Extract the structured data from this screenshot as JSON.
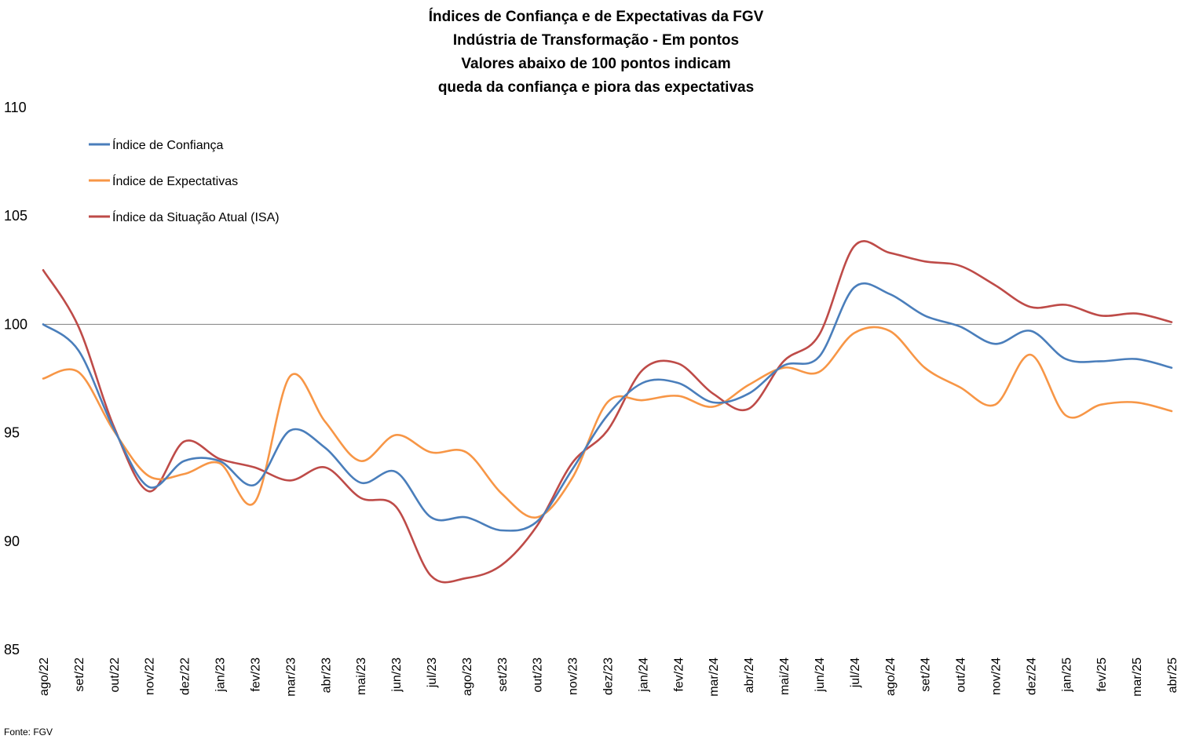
{
  "chart_data": {
    "type": "line",
    "title": [
      "Índices de Confiança e de Expectativas da FGV",
      "Indústria de Transformação - Em pontos",
      "Valores abaixo de 100 pontos indicam",
      "queda da confiança e piora das expectativas"
    ],
    "categories": [
      "ago/22",
      "set/22",
      "out/22",
      "nov/22",
      "dez/22",
      "jan/23",
      "fev/23",
      "mar/23",
      "abr/23",
      "mai/23",
      "jun/23",
      "jul/23",
      "ago/23",
      "set/23",
      "out/23",
      "nov/23",
      "dez/23",
      "jan/24",
      "fev/24",
      "mar/24",
      "abr/24",
      "mai/24",
      "jun/24",
      "jul/24",
      "ago/24",
      "set/24",
      "out/24",
      "nov/24",
      "dez/24",
      "jan/25",
      "fev/25",
      "mar/25",
      "abr/25"
    ],
    "series": [
      {
        "name": "Índice de Confiança",
        "color": "#4A7EBB",
        "values": [
          100.0,
          98.8,
          95.2,
          92.5,
          93.7,
          93.7,
          92.6,
          95.1,
          94.3,
          92.7,
          93.2,
          91.1,
          91.1,
          90.5,
          90.9,
          93.3,
          95.8,
          97.3,
          97.3,
          96.4,
          96.8,
          98.1,
          98.5,
          101.7,
          101.4,
          100.4,
          99.9,
          99.1,
          99.7,
          98.4,
          98.3,
          98.4,
          98.0
        ]
      },
      {
        "name": "Índice de Expectativas",
        "color": "#F79646",
        "values": [
          97.5,
          97.8,
          95.1,
          93.0,
          93.1,
          93.6,
          91.8,
          97.6,
          95.5,
          93.7,
          94.9,
          94.1,
          94.1,
          92.2,
          91.1,
          92.9,
          96.4,
          96.5,
          96.7,
          96.2,
          97.2,
          98.0,
          97.8,
          99.6,
          99.7,
          98.0,
          97.1,
          96.3,
          98.6,
          95.8,
          96.3,
          96.4,
          96.0
        ]
      },
      {
        "name": "Índice da Situação Atual (ISA)",
        "color": "#BE4B48",
        "values": [
          102.5,
          99.9,
          95.3,
          92.3,
          94.6,
          93.8,
          93.4,
          92.8,
          93.4,
          92.0,
          91.6,
          88.4,
          88.3,
          88.9,
          90.7,
          93.6,
          95.1,
          97.9,
          98.2,
          96.8,
          96.1,
          98.3,
          99.5,
          103.6,
          103.3,
          102.9,
          102.7,
          101.8,
          100.8,
          100.9,
          100.4,
          100.5,
          100.1
        ]
      }
    ],
    "ylim": [
      85,
      110
    ],
    "yticks": [
      "85",
      "90",
      "95",
      "100",
      "105",
      "110"
    ],
    "reference_line": 100,
    "xlabel": "",
    "ylabel": "",
    "legend_position": "top-left",
    "grid": false,
    "source": "Fonte: FGV"
  }
}
